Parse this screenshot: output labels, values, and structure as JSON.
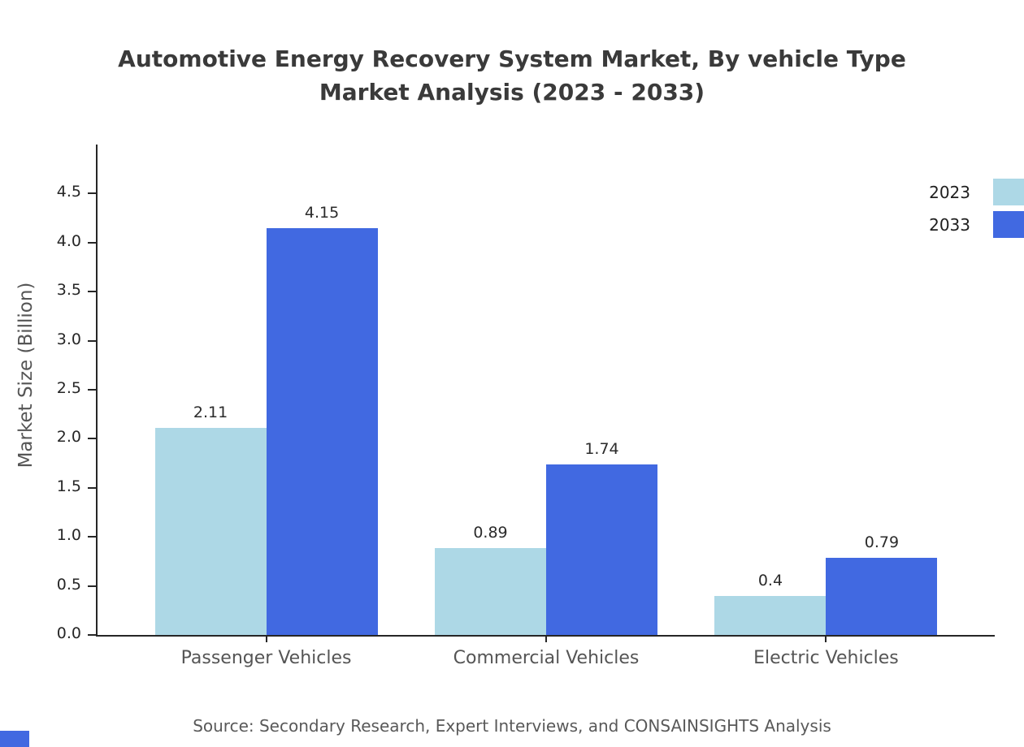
{
  "title": {
    "line1": "Automotive Energy Recovery System Market, By vehicle Type",
    "line2": "Market Analysis (2023 - 2033)"
  },
  "source": "Source: Secondary Research, Expert Interviews, and CONSAINSIGHTS Analysis",
  "chart_data": {
    "type": "bar",
    "title": "Automotive Energy Recovery System Market, By vehicle Type Market Analysis (2023 - 2033)",
    "categories": [
      "Passenger Vehicles",
      "Commercial Vehicles",
      "Electric Vehicles"
    ],
    "series": [
      {
        "name": "2023",
        "color": "#ADD8E6",
        "values": [
          2.11,
          0.89,
          0.4
        ]
      },
      {
        "name": "2033",
        "color": "#4169E1",
        "values": [
          4.15,
          1.74,
          0.79
        ]
      }
    ],
    "xlabel": "",
    "ylabel": "Market Size (Billion)",
    "ylim": [
      0,
      5.0
    ],
    "yticks": [
      0.0,
      0.5,
      1.0,
      1.5,
      2.0,
      2.5,
      3.0,
      3.5,
      4.0,
      4.5
    ],
    "value_labels": true,
    "grid": false,
    "legend_position": "upper right"
  }
}
